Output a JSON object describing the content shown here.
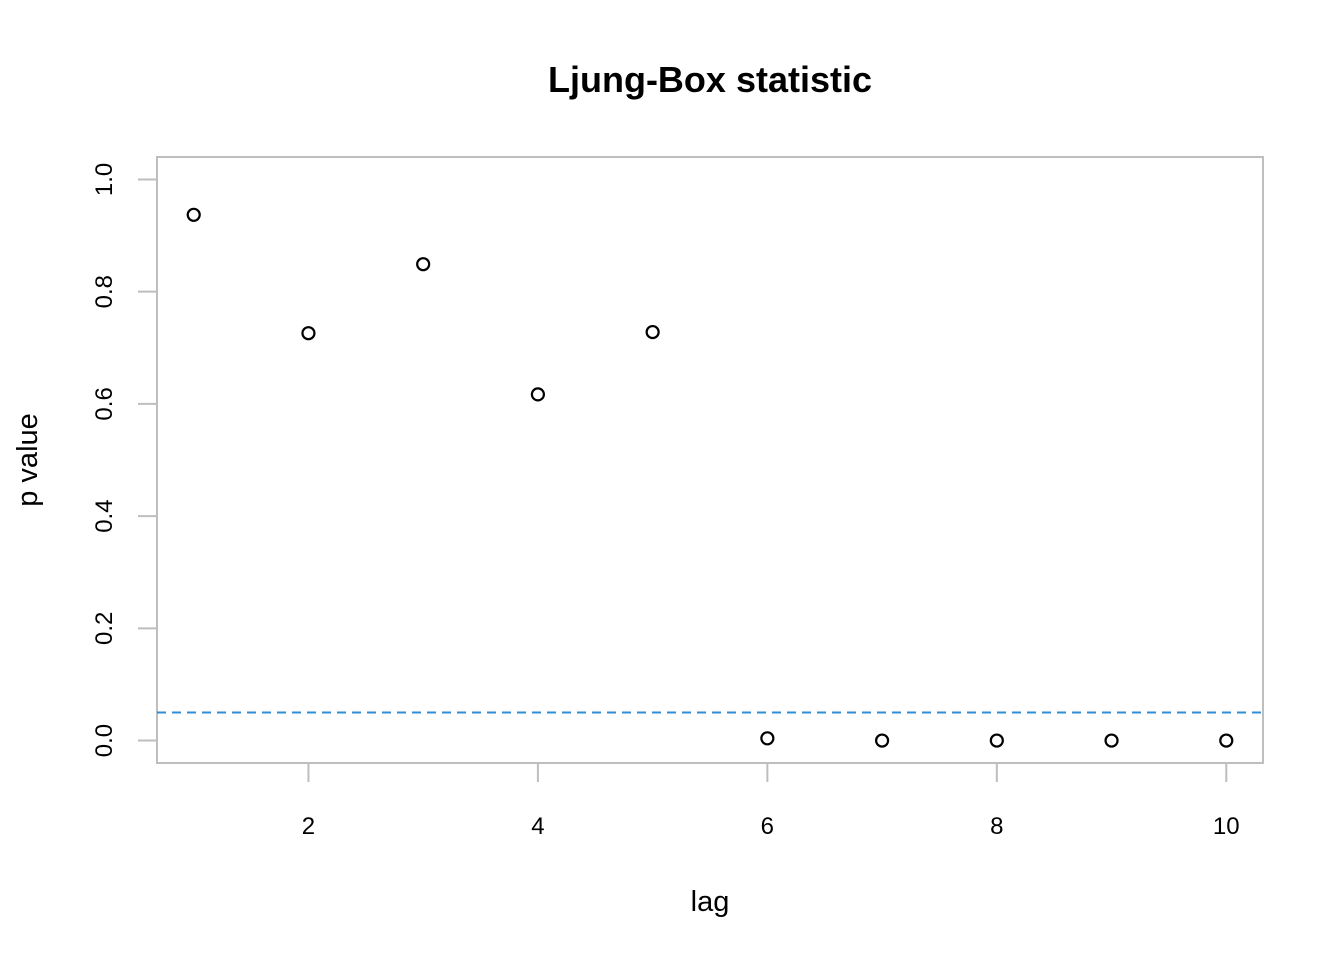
{
  "chart_data": {
    "type": "scatter",
    "title": "Ljung-Box statistic",
    "xlabel": "lag",
    "ylabel": "p value",
    "xlim": [
      0.68,
      10.32
    ],
    "ylim": [
      -0.04,
      1.04
    ],
    "x_ticks": [
      2,
      4,
      6,
      8,
      10
    ],
    "x_tick_labels": [
      "2",
      "4",
      "6",
      "8",
      "10"
    ],
    "y_ticks": [
      0,
      0.2,
      0.4,
      0.6,
      0.8,
      1
    ],
    "y_tick_labels": [
      "0.0",
      "0.2",
      "0.4",
      "0.6",
      "0.8",
      "1.0"
    ],
    "grid": false,
    "series": [
      {
        "x": [
          1,
          2,
          3,
          4,
          5,
          6,
          7,
          8,
          9,
          10
        ],
        "y": [
          0.937,
          0.726,
          0.849,
          0.617,
          0.728,
          0.004,
          0.0,
          0.0,
          0.0,
          0.0
        ]
      }
    ],
    "reference_line": {
      "y": 0.05,
      "style": "dashed",
      "color": "#2c8fd6"
    },
    "colors": {
      "points": "#000000",
      "frame": "#bebebe",
      "reference": "#2c8fd6"
    }
  }
}
